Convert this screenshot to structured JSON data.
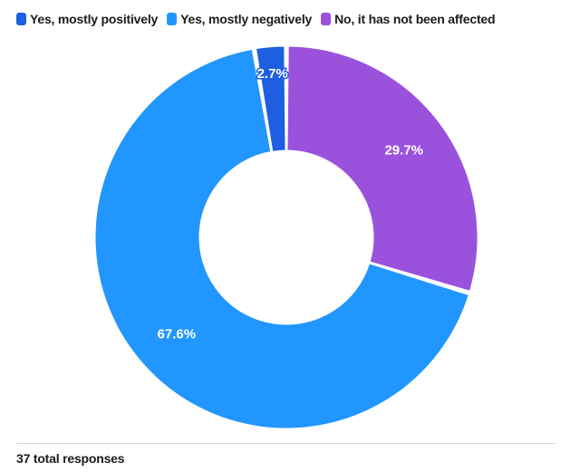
{
  "chart_data": {
    "type": "pie",
    "donut": true,
    "categories": [
      "Yes, mostly positively",
      "Yes, mostly negatively",
      "No, it has not been affected"
    ],
    "values": [
      2.7,
      67.6,
      29.7
    ],
    "labels": [
      "2.7%",
      "67.6%",
      "29.7%"
    ],
    "colors": [
      "#1c5fe0",
      "#2196ff",
      "#9a52dd"
    ],
    "legend_position": "top-left",
    "start_angle": "12 o'clock",
    "direction": "clockwise"
  },
  "legend": {
    "items": [
      {
        "label": "Yes, mostly positively",
        "color": "#1c5fe0"
      },
      {
        "label": "Yes, mostly negatively",
        "color": "#2196ff"
      },
      {
        "label": "No, it has not been affected",
        "color": "#9a52dd"
      }
    ]
  },
  "footer": {
    "text": "37 total responses"
  }
}
